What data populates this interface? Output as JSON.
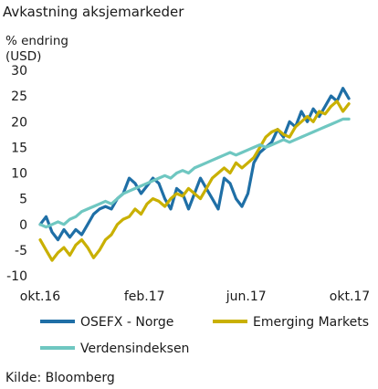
{
  "chart_data": {
    "type": "line",
    "title": "Avkastning aksjemarkeder",
    "ylabel_line1": "% endring",
    "ylabel_line2": "(USD)",
    "xlabel": "",
    "ylim": [
      -10,
      30
    ],
    "yticks": [
      -10,
      -5,
      0,
      5,
      10,
      15,
      20,
      25,
      30
    ],
    "xlim": [
      "2016-10-01",
      "2017-10-01"
    ],
    "xticks": [
      {
        "date": "2016-10-01",
        "label": "okt.16"
      },
      {
        "date": "2017-02-01",
        "label": "feb.17"
      },
      {
        "date": "2017-06-01",
        "label": "jun.17"
      },
      {
        "date": "2017-10-01",
        "label": "okt.17"
      }
    ],
    "grid": false,
    "legend_position": "bottom",
    "source": "Kilde: Bloomberg",
    "series": [
      {
        "name": "OSEFX - Norge",
        "color": "#1f6fa6",
        "points": [
          [
            "2016-10-01",
            0
          ],
          [
            "2016-10-08",
            1.5
          ],
          [
            "2016-10-15",
            -1.5
          ],
          [
            "2016-10-22",
            -3
          ],
          [
            "2016-10-29",
            -1
          ],
          [
            "2016-11-05",
            -2.5
          ],
          [
            "2016-11-12",
            -1
          ],
          [
            "2016-11-19",
            -2
          ],
          [
            "2016-11-26",
            0
          ],
          [
            "2016-12-03",
            2
          ],
          [
            "2016-12-10",
            3
          ],
          [
            "2016-12-17",
            3.5
          ],
          [
            "2016-12-24",
            3
          ],
          [
            "2016-12-31",
            5
          ],
          [
            "2017-01-07",
            6
          ],
          [
            "2017-01-14",
            9
          ],
          [
            "2017-01-21",
            8
          ],
          [
            "2017-01-28",
            6
          ],
          [
            "2017-02-04",
            7.5
          ],
          [
            "2017-02-11",
            9
          ],
          [
            "2017-02-18",
            8
          ],
          [
            "2017-02-25",
            5
          ],
          [
            "2017-03-04",
            3
          ],
          [
            "2017-03-11",
            7
          ],
          [
            "2017-03-18",
            6
          ],
          [
            "2017-03-25",
            3
          ],
          [
            "2017-04-01",
            6
          ],
          [
            "2017-04-08",
            9
          ],
          [
            "2017-04-15",
            7
          ],
          [
            "2017-04-22",
            5
          ],
          [
            "2017-04-29",
            3
          ],
          [
            "2017-05-06",
            9
          ],
          [
            "2017-05-13",
            8
          ],
          [
            "2017-05-20",
            5
          ],
          [
            "2017-05-27",
            3.5
          ],
          [
            "2017-06-03",
            6
          ],
          [
            "2017-06-10",
            12
          ],
          [
            "2017-06-17",
            14
          ],
          [
            "2017-06-24",
            15
          ],
          [
            "2017-07-01",
            16
          ],
          [
            "2017-07-08",
            18.5
          ],
          [
            "2017-07-15",
            17
          ],
          [
            "2017-07-22",
            20
          ],
          [
            "2017-07-29",
            19
          ],
          [
            "2017-08-05",
            22
          ],
          [
            "2017-08-12",
            20
          ],
          [
            "2017-08-19",
            22.5
          ],
          [
            "2017-08-26",
            21
          ],
          [
            "2017-09-02",
            23
          ],
          [
            "2017-09-09",
            25
          ],
          [
            "2017-09-16",
            24
          ],
          [
            "2017-09-23",
            26.5
          ],
          [
            "2017-09-30",
            24.5
          ]
        ]
      },
      {
        "name": "Emerging Markets",
        "color": "#c9b000",
        "points": [
          [
            "2016-10-01",
            -3
          ],
          [
            "2016-10-08",
            -5
          ],
          [
            "2016-10-15",
            -7
          ],
          [
            "2016-10-22",
            -5.5
          ],
          [
            "2016-10-29",
            -4.5
          ],
          [
            "2016-11-05",
            -6
          ],
          [
            "2016-11-12",
            -4
          ],
          [
            "2016-11-19",
            -3
          ],
          [
            "2016-11-26",
            -4.5
          ],
          [
            "2016-12-03",
            -6.5
          ],
          [
            "2016-12-10",
            -5
          ],
          [
            "2016-12-17",
            -3
          ],
          [
            "2016-12-24",
            -2
          ],
          [
            "2016-12-31",
            0
          ],
          [
            "2017-01-07",
            1
          ],
          [
            "2017-01-14",
            1.5
          ],
          [
            "2017-01-21",
            3
          ],
          [
            "2017-01-28",
            2
          ],
          [
            "2017-02-04",
            4
          ],
          [
            "2017-02-11",
            5
          ],
          [
            "2017-02-18",
            4.5
          ],
          [
            "2017-02-25",
            3.5
          ],
          [
            "2017-03-04",
            5
          ],
          [
            "2017-03-11",
            6
          ],
          [
            "2017-03-18",
            5.5
          ],
          [
            "2017-03-25",
            7
          ],
          [
            "2017-04-01",
            6
          ],
          [
            "2017-04-08",
            5
          ],
          [
            "2017-04-15",
            7
          ],
          [
            "2017-04-22",
            9
          ],
          [
            "2017-04-29",
            10
          ],
          [
            "2017-05-06",
            11
          ],
          [
            "2017-05-13",
            10
          ],
          [
            "2017-05-20",
            12
          ],
          [
            "2017-05-27",
            11
          ],
          [
            "2017-06-03",
            12
          ],
          [
            "2017-06-10",
            13
          ],
          [
            "2017-06-17",
            15
          ],
          [
            "2017-06-24",
            17
          ],
          [
            "2017-07-01",
            18
          ],
          [
            "2017-07-08",
            18.5
          ],
          [
            "2017-07-15",
            17.5
          ],
          [
            "2017-07-22",
            17
          ],
          [
            "2017-07-29",
            19
          ],
          [
            "2017-08-05",
            20
          ],
          [
            "2017-08-12",
            21
          ],
          [
            "2017-08-19",
            20
          ],
          [
            "2017-08-26",
            22
          ],
          [
            "2017-09-02",
            21.5
          ],
          [
            "2017-09-09",
            23
          ],
          [
            "2017-09-16",
            24
          ],
          [
            "2017-09-23",
            22
          ],
          [
            "2017-09-30",
            23.5
          ]
        ]
      },
      {
        "name": "Verdensindeksen",
        "color": "#6fc7c1",
        "points": [
          [
            "2016-10-01",
            0
          ],
          [
            "2016-10-08",
            -0.5
          ],
          [
            "2016-10-15",
            0
          ],
          [
            "2016-10-22",
            0.5
          ],
          [
            "2016-10-29",
            0
          ],
          [
            "2016-11-05",
            1
          ],
          [
            "2016-11-12",
            1.5
          ],
          [
            "2016-11-19",
            2.5
          ],
          [
            "2016-11-26",
            3
          ],
          [
            "2016-12-03",
            3.5
          ],
          [
            "2016-12-10",
            4
          ],
          [
            "2016-12-17",
            4.5
          ],
          [
            "2016-12-24",
            4
          ],
          [
            "2016-12-31",
            5
          ],
          [
            "2017-01-07",
            6
          ],
          [
            "2017-01-14",
            6.5
          ],
          [
            "2017-01-21",
            7
          ],
          [
            "2017-01-28",
            7.5
          ],
          [
            "2017-02-04",
            8
          ],
          [
            "2017-02-11",
            8.5
          ],
          [
            "2017-02-18",
            9
          ],
          [
            "2017-02-25",
            9.5
          ],
          [
            "2017-03-04",
            9
          ],
          [
            "2017-03-11",
            10
          ],
          [
            "2017-03-18",
            10.5
          ],
          [
            "2017-03-25",
            10
          ],
          [
            "2017-04-01",
            11
          ],
          [
            "2017-04-08",
            11.5
          ],
          [
            "2017-04-15",
            12
          ],
          [
            "2017-04-22",
            12.5
          ],
          [
            "2017-04-29",
            13
          ],
          [
            "2017-05-06",
            13.5
          ],
          [
            "2017-05-13",
            14
          ],
          [
            "2017-05-20",
            13.5
          ],
          [
            "2017-05-27",
            14
          ],
          [
            "2017-06-03",
            14.5
          ],
          [
            "2017-06-10",
            15
          ],
          [
            "2017-06-17",
            15.5
          ],
          [
            "2017-06-24",
            15
          ],
          [
            "2017-07-01",
            15.5
          ],
          [
            "2017-07-08",
            16
          ],
          [
            "2017-07-15",
            16.5
          ],
          [
            "2017-07-22",
            16
          ],
          [
            "2017-07-29",
            16.5
          ],
          [
            "2017-08-05",
            17
          ],
          [
            "2017-08-12",
            17.5
          ],
          [
            "2017-08-19",
            18
          ],
          [
            "2017-08-26",
            18.5
          ],
          [
            "2017-09-02",
            19
          ],
          [
            "2017-09-09",
            19.5
          ],
          [
            "2017-09-16",
            20
          ],
          [
            "2017-09-23",
            20.5
          ],
          [
            "2017-09-30",
            20.5
          ]
        ]
      }
    ]
  }
}
